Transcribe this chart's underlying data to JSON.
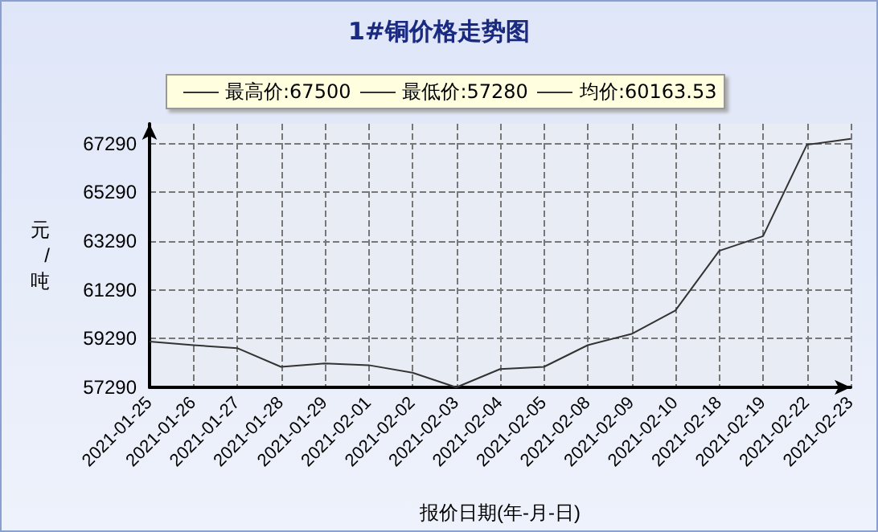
{
  "chart_data": {
    "type": "line",
    "title": "1#铜价格走势图",
    "xlabel": "报价日期(年-月-日)",
    "ylabel": "元/吨",
    "annotations": [
      "最高价:67500",
      "最低价:57280",
      "均价:60163.53"
    ],
    "categories": [
      "2021-01-25",
      "2021-01-26",
      "2021-01-27",
      "2021-01-28",
      "2021-01-29",
      "2021-02-01",
      "2021-02-02",
      "2021-02-03",
      "2021-02-04",
      "2021-02-05",
      "2021-02-08",
      "2021-02-09",
      "2021-02-10",
      "2021-02-18",
      "2021-02-19",
      "2021-02-22",
      "2021-02-23"
    ],
    "series": [
      {
        "color": "#333333",
        "values": [
          59170,
          59020,
          58900,
          58130,
          58270,
          58200,
          57890,
          57290,
          58040,
          58130,
          59020,
          59480,
          60440,
          62890,
          63490,
          67240,
          67480
        ]
      }
    ],
    "ylim": [
      57290,
      68100
    ],
    "yticks": [
      57290,
      59290,
      61290,
      63290,
      65290,
      67290
    ],
    "grid": true,
    "marker": "none",
    "line_style": "solid"
  }
}
